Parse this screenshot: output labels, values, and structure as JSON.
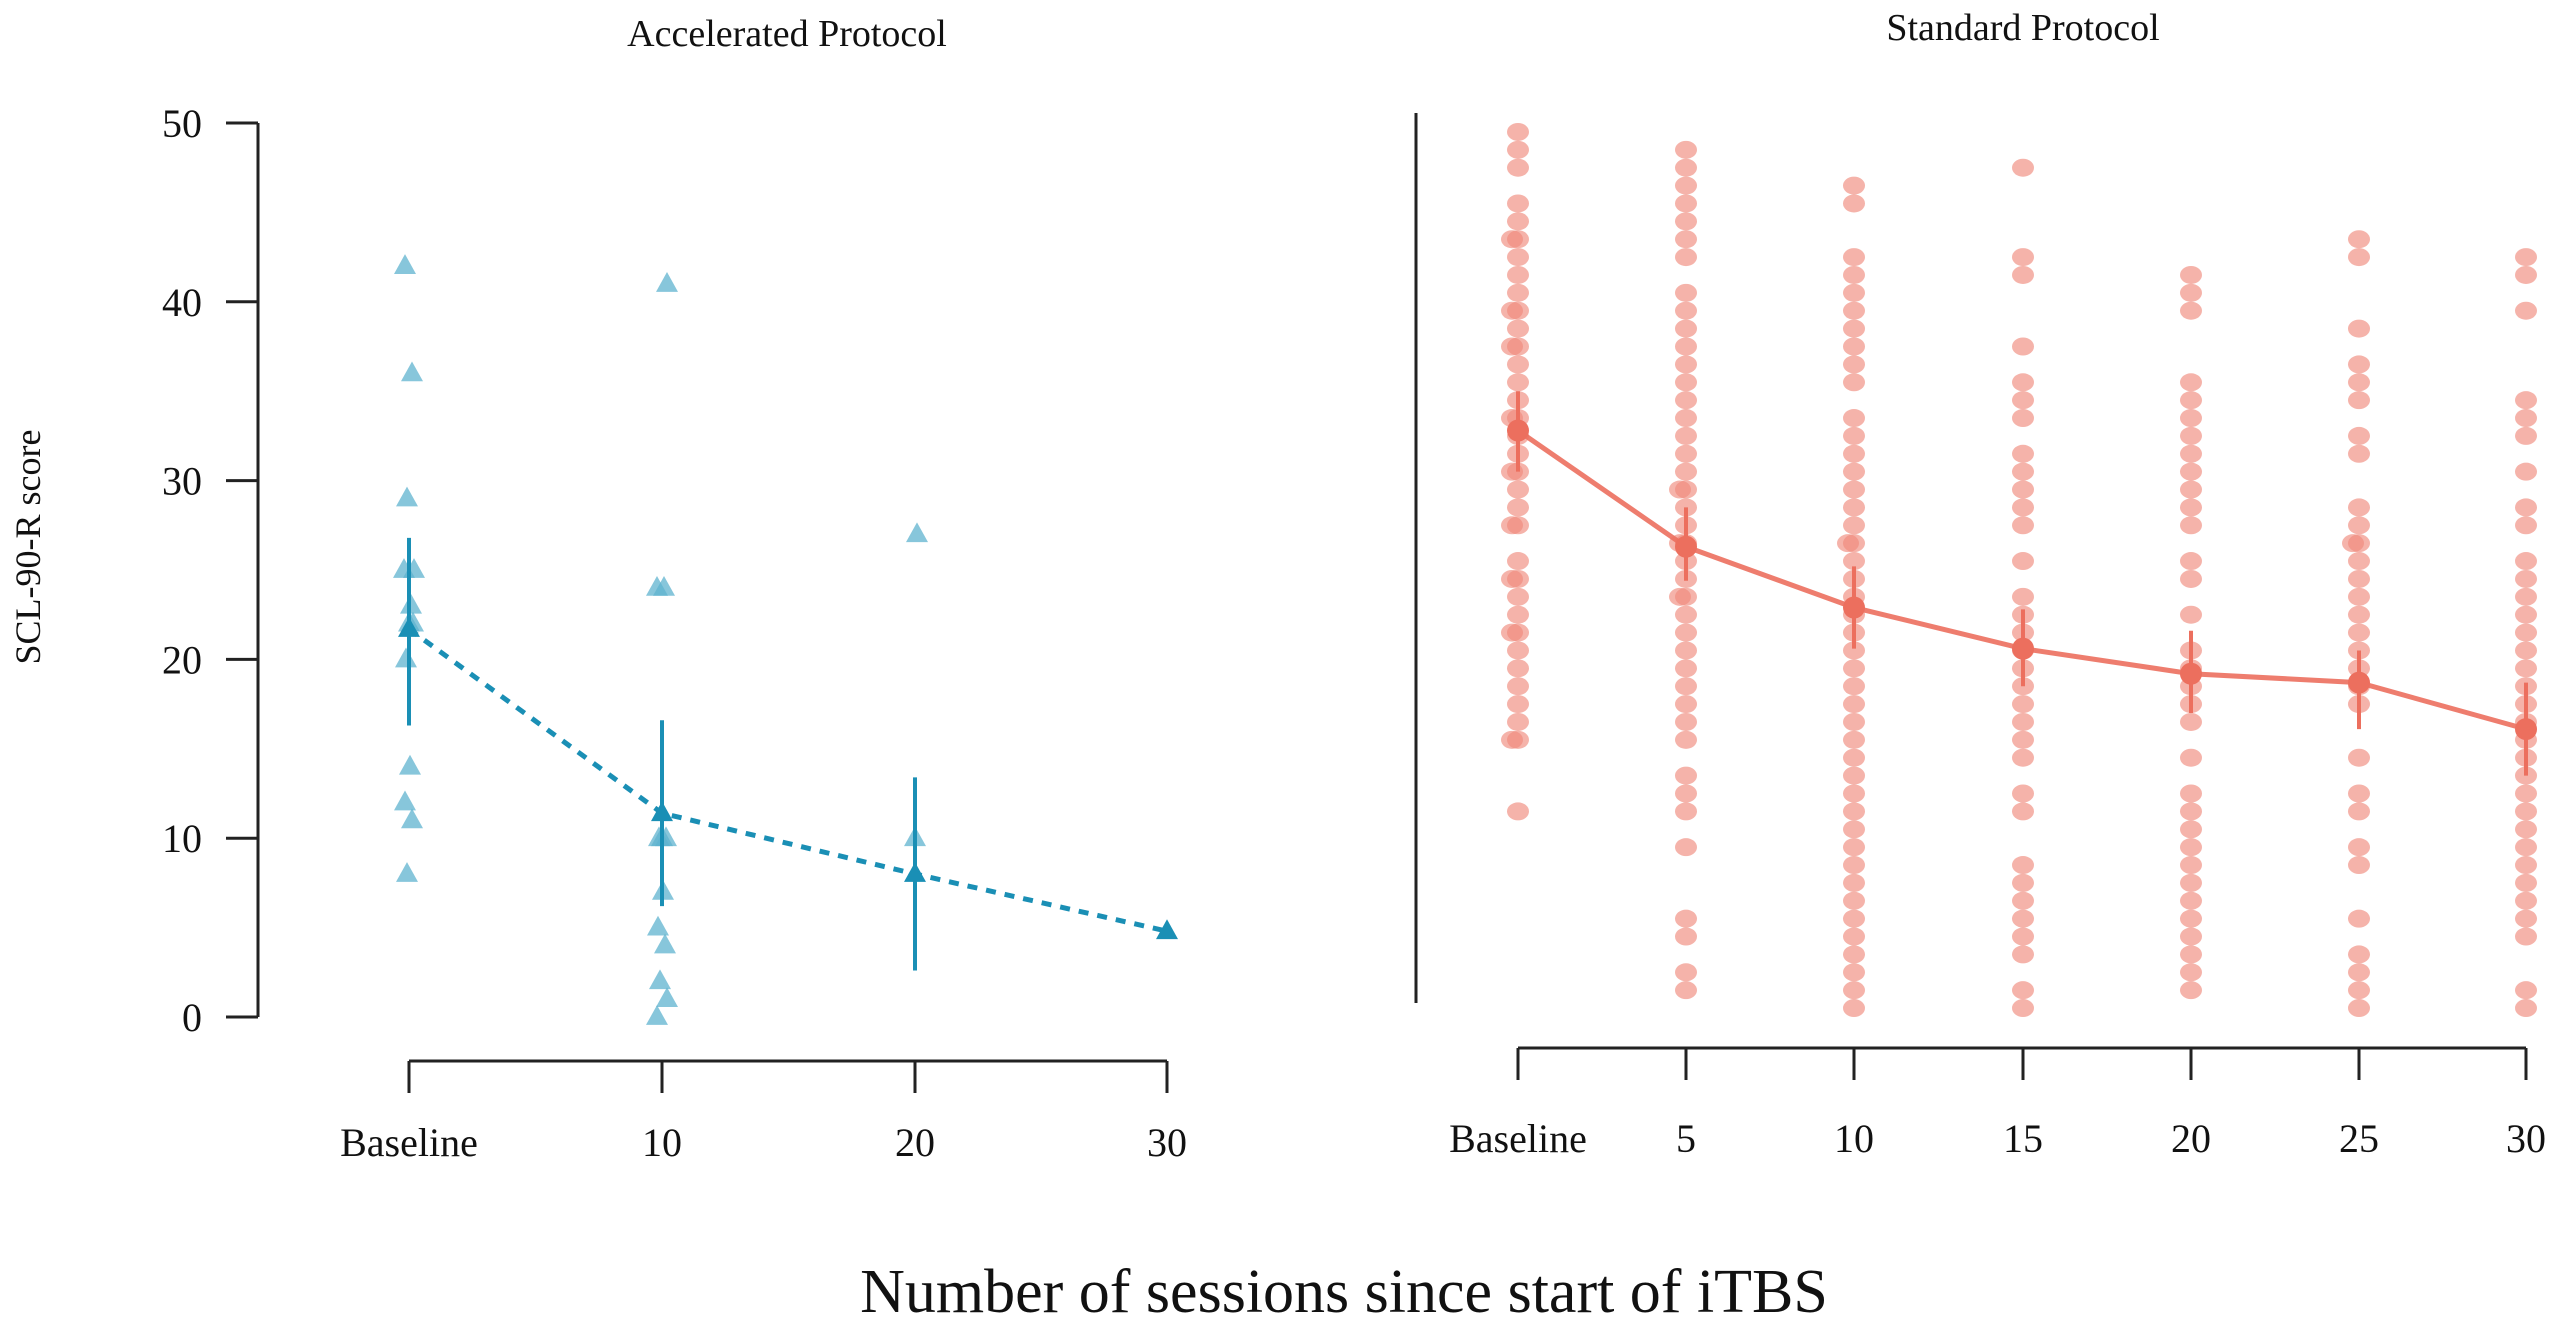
{
  "chart_data": [
    {
      "type": "scatter",
      "panel": "left",
      "title": "Accelerated Protocol",
      "ylabel": "SCL-90-R score",
      "xlabel": "Number of sessions since start of iTBS",
      "ylim": [
        0,
        50
      ],
      "yticks": [
        0,
        10,
        20,
        30,
        40,
        50
      ],
      "x_categories": [
        "Baseline",
        "10",
        "20",
        "30"
      ],
      "x_values": [
        0,
        10,
        20,
        30
      ],
      "marker": "triangle",
      "color": "#1a8fb5",
      "point_color": "#5fb3cf",
      "mean_line_style": "dotted",
      "points": [
        {
          "x": 0,
          "y": 42
        },
        {
          "x": 0,
          "y": 36
        },
        {
          "x": 0,
          "y": 29
        },
        {
          "x": 0,
          "y": 25
        },
        {
          "x": 0,
          "y": 25
        },
        {
          "x": 0,
          "y": 23
        },
        {
          "x": 0,
          "y": 22
        },
        {
          "x": 0,
          "y": 22
        },
        {
          "x": 0,
          "y": 20
        },
        {
          "x": 0,
          "y": 14
        },
        {
          "x": 0,
          "y": 12
        },
        {
          "x": 0,
          "y": 11
        },
        {
          "x": 0,
          "y": 8
        },
        {
          "x": 10,
          "y": 41
        },
        {
          "x": 10,
          "y": 24
        },
        {
          "x": 10,
          "y": 24
        },
        {
          "x": 10,
          "y": 10
        },
        {
          "x": 10,
          "y": 10
        },
        {
          "x": 10,
          "y": 10
        },
        {
          "x": 10,
          "y": 7
        },
        {
          "x": 10,
          "y": 5
        },
        {
          "x": 10,
          "y": 4
        },
        {
          "x": 10,
          "y": 2
        },
        {
          "x": 10,
          "y": 1
        },
        {
          "x": 10,
          "y": 0
        },
        {
          "x": 20,
          "y": 27
        },
        {
          "x": 20,
          "y": 10
        }
      ],
      "means": [
        {
          "x": 0,
          "mean": 21.7,
          "lower": 16.3,
          "upper": 26.8
        },
        {
          "x": 10,
          "mean": 11.4,
          "lower": 6.2,
          "upper": 16.6
        },
        {
          "x": 20,
          "mean": 8.0,
          "lower": 2.6,
          "upper": 13.4
        },
        {
          "x": 30,
          "mean": 4.8,
          "lower": null,
          "upper": null
        }
      ]
    },
    {
      "type": "scatter",
      "panel": "right",
      "title": "Standard Protocol",
      "ylim": [
        0,
        50
      ],
      "x_categories": [
        "Baseline",
        "5",
        "10",
        "15",
        "20",
        "25",
        "30"
      ],
      "x_values": [
        0,
        5,
        10,
        15,
        20,
        25,
        30
      ],
      "marker": "circle",
      "color": "#ec6f5e",
      "point_color": "#f08a7c",
      "mean_line_style": "solid",
      "columns": [
        {
          "x": 0,
          "values": [
            49.5,
            48.5,
            47.5,
            45.5,
            44.5,
            43.5,
            43.5,
            42.5,
            41.5,
            40.5,
            39.5,
            39.5,
            38.5,
            37.5,
            37.5,
            36.5,
            35.5,
            34.5,
            33.5,
            33.5,
            32.5,
            31.5,
            30.5,
            30.5,
            29.5,
            28.5,
            27.5,
            27.5,
            25.5,
            24.5,
            24.5,
            23.5,
            22.5,
            21.5,
            21.5,
            20.5,
            19.5,
            18.5,
            17.5,
            16.5,
            15.5,
            15.5,
            11.5
          ]
        },
        {
          "x": 5,
          "values": [
            48.5,
            47.5,
            46.5,
            45.5,
            44.5,
            43.5,
            42.5,
            40.5,
            39.5,
            38.5,
            37.5,
            36.5,
            35.5,
            34.5,
            33.5,
            32.5,
            31.5,
            30.5,
            29.5,
            29.5,
            28.5,
            27.5,
            26.5,
            26.5,
            25.5,
            24.5,
            23.5,
            23.5,
            22.5,
            21.5,
            20.5,
            19.5,
            18.5,
            17.5,
            16.5,
            15.5,
            13.5,
            12.5,
            11.5,
            9.5,
            5.5,
            4.5,
            2.5,
            1.5
          ]
        },
        {
          "x": 10,
          "values": [
            46.5,
            45.5,
            42.5,
            41.5,
            40.5,
            39.5,
            38.5,
            37.5,
            36.5,
            35.5,
            33.5,
            32.5,
            31.5,
            30.5,
            29.5,
            28.5,
            27.5,
            26.5,
            26.5,
            25.5,
            24.5,
            23.5,
            22.5,
            21.5,
            20.5,
            19.5,
            18.5,
            17.5,
            16.5,
            15.5,
            14.5,
            13.5,
            12.5,
            11.5,
            10.5,
            9.5,
            8.5,
            7.5,
            6.5,
            5.5,
            4.5,
            3.5,
            2.5,
            1.5,
            0.5
          ]
        },
        {
          "x": 15,
          "values": [
            47.5,
            42.5,
            41.5,
            37.5,
            35.5,
            34.5,
            33.5,
            31.5,
            30.5,
            29.5,
            28.5,
            27.5,
            25.5,
            23.5,
            22.5,
            21.5,
            20.5,
            19.5,
            18.5,
            17.5,
            16.5,
            15.5,
            14.5,
            12.5,
            11.5,
            8.5,
            7.5,
            6.5,
            5.5,
            4.5,
            3.5,
            1.5,
            0.5
          ]
        },
        {
          "x": 20,
          "values": [
            41.5,
            40.5,
            39.5,
            35.5,
            34.5,
            33.5,
            32.5,
            31.5,
            30.5,
            29.5,
            28.5,
            27.5,
            25.5,
            24.5,
            22.5,
            20.5,
            19.5,
            18.5,
            17.5,
            16.5,
            14.5,
            12.5,
            11.5,
            10.5,
            9.5,
            8.5,
            7.5,
            6.5,
            5.5,
            4.5,
            3.5,
            2.5,
            1.5
          ]
        },
        {
          "x": 25,
          "values": [
            43.5,
            42.5,
            38.5,
            36.5,
            35.5,
            34.5,
            32.5,
            31.5,
            28.5,
            27.5,
            26.5,
            26.5,
            25.5,
            24.5,
            23.5,
            22.5,
            21.5,
            20.5,
            19.5,
            18.5,
            17.5,
            14.5,
            12.5,
            11.5,
            9.5,
            8.5,
            5.5,
            3.5,
            2.5,
            1.5,
            0.5
          ]
        },
        {
          "x": 30,
          "values": [
            42.5,
            41.5,
            39.5,
            34.5,
            33.5,
            32.5,
            30.5,
            28.5,
            27.5,
            25.5,
            24.5,
            23.5,
            22.5,
            21.5,
            20.5,
            19.5,
            18.5,
            17.5,
            16.5,
            15.5,
            14.5,
            13.5,
            12.5,
            11.5,
            10.5,
            9.5,
            8.5,
            7.5,
            6.5,
            5.5,
            4.5,
            1.5,
            0.5
          ]
        }
      ],
      "means": [
        {
          "x": 0,
          "mean": 32.8,
          "lower": 30.5,
          "upper": 35.0
        },
        {
          "x": 5,
          "mean": 26.3,
          "lower": 24.4,
          "upper": 28.5
        },
        {
          "x": 10,
          "mean": 22.9,
          "lower": 20.6,
          "upper": 25.2
        },
        {
          "x": 15,
          "mean": 20.6,
          "lower": 18.5,
          "upper": 22.8
        },
        {
          "x": 20,
          "mean": 19.2,
          "lower": 17.0,
          "upper": 21.6
        },
        {
          "x": 25,
          "mean": 18.7,
          "lower": 16.1,
          "upper": 20.5
        },
        {
          "x": 30,
          "mean": 16.1,
          "lower": 13.5,
          "upper": 18.7
        }
      ]
    }
  ],
  "labels": {
    "left_title": "Accelerated Protocol",
    "right_title": "Standard Protocol",
    "y_axis_title": "SCL-90-R score",
    "x_axis_title": "Number of sessions since start of iTBS"
  }
}
